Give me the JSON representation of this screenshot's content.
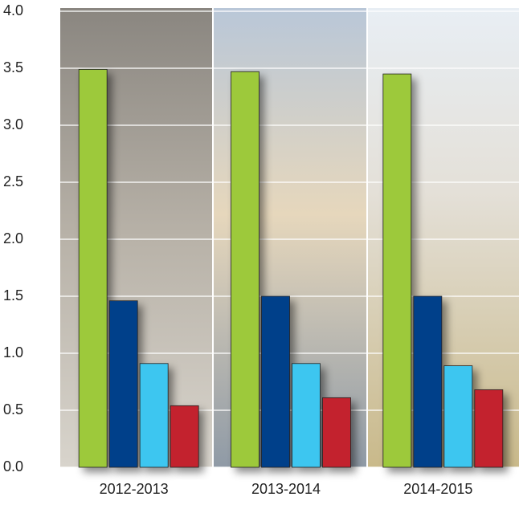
{
  "chart_data": {
    "type": "bar",
    "categories": [
      "2012-2013",
      "2013-2014",
      "2014-2015"
    ],
    "series": [
      {
        "color": "#9dc93b",
        "values": [
          3.49,
          3.47,
          3.45
        ]
      },
      {
        "color": "#063f8a",
        "values": [
          1.46,
          1.5,
          1.5
        ]
      },
      {
        "color": "#3ec6f0",
        "values": [
          0.91,
          0.91,
          0.89
        ]
      },
      {
        "color": "#c3232d",
        "values": [
          0.54,
          0.61,
          0.68
        ]
      }
    ],
    "ylim": [
      0,
      4
    ],
    "yticks": [
      {
        "value": 0,
        "label": "0.0"
      },
      0.5,
      {
        "value": 1,
        "label": "1.0"
      },
      1.5,
      {
        "value": 2,
        "label": "2.0"
      },
      2.5,
      {
        "value": 3,
        "label": "3.0"
      },
      3.5,
      {
        "value": 4,
        "label": "4.0"
      }
    ],
    "grid": true
  }
}
